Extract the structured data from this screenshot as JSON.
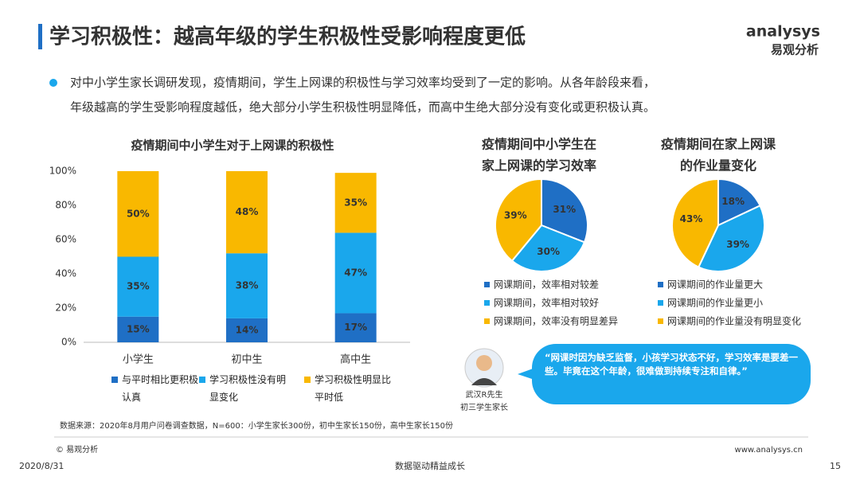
{
  "header": {
    "title": "学习积极性：越高年级的学生积极性受影响程度更低",
    "logo_en": "analysys",
    "logo_cn": "易观分析"
  },
  "summary": [
    "对中小学生家长调研发现，疫情期间，学生上网课的积极性与学习效率均受到了一定的影响。从各年龄段来看，",
    "年级越高的学生受影响程度越低，绝大部分小学生积极性明显降低，而高中生绝大部分没有变化或更积极认真。"
  ],
  "chart_data": [
    {
      "type": "bar",
      "stacked": true,
      "title": "疫情期间中小学生对于上网课的积极性",
      "categories": [
        "小学生",
        "初中生",
        "高中生"
      ],
      "series": [
        {
          "name": "与平时相比更积极认真",
          "color": "#1f6fc5",
          "values": [
            15,
            14,
            17
          ],
          "value_labels": [
            "15%",
            "14%",
            "17%"
          ]
        },
        {
          "name": "学习积极性没有明显变化",
          "color": "#1aa7ec",
          "values": [
            35,
            38,
            47
          ],
          "value_labels": [
            "35%",
            "38%",
            "47%"
          ]
        },
        {
          "name": "学习积极性明显比平时低",
          "color": "#f9b800",
          "values": [
            50,
            48,
            35
          ],
          "value_labels": [
            "50%",
            "48%",
            "35%"
          ]
        }
      ],
      "ylim": [
        0,
        100
      ],
      "yticks": [
        {
          "value": 0,
          "label": "0%"
        },
        {
          "value": 20,
          "label": "20%"
        },
        {
          "value": 40,
          "label": "40%"
        },
        {
          "value": 60,
          "label": "60%"
        },
        {
          "value": 80,
          "label": "80%"
        },
        {
          "value": 100,
          "label": "100%"
        }
      ],
      "grid": false
    },
    {
      "type": "pie",
      "title": [
        "疫情期间中小学生在",
        "家上网课的学习效率"
      ],
      "categories": [
        "网课期间，效率相对较差",
        "网课期间，效率相对较好",
        "网课期间，效率没有明显差异"
      ],
      "values": [
        31,
        30,
        39
      ],
      "value_labels": [
        "31%",
        "30%",
        "39%"
      ],
      "colors": [
        "#1f6fc5",
        "#1aa7ec",
        "#f9b800"
      ]
    },
    {
      "type": "pie",
      "title": [
        "疫情期间在家上网课",
        "的作业量变化"
      ],
      "categories": [
        "网课期间的作业量更大",
        "网课期间的作业量更小",
        "网课期间的作业量没有明显变化"
      ],
      "values": [
        18,
        39,
        43
      ],
      "value_labels": [
        "18%",
        "39%",
        "43%"
      ],
      "colors": [
        "#1f6fc5",
        "#1aa7ec",
        "#f9b800"
      ]
    }
  ],
  "quote": {
    "text": "“网课时因为缺乏监督，小孩学习状态不好，学习效率是要差一些。毕竟在这个年龄，很难做到持续专注和自律。”",
    "name": "武汉R先生",
    "role": "初三学生家长"
  },
  "source": "数据来源：2020年8月用户问卷调查数据，N=600：小学生家长300份，初中生家长150份，高中生家长150份",
  "footer": {
    "copyright": "© 易观分析",
    "website": "www.analysys.cn",
    "date": "2020/8/31",
    "slogan": "数据驱动精益成长",
    "page": "15"
  }
}
